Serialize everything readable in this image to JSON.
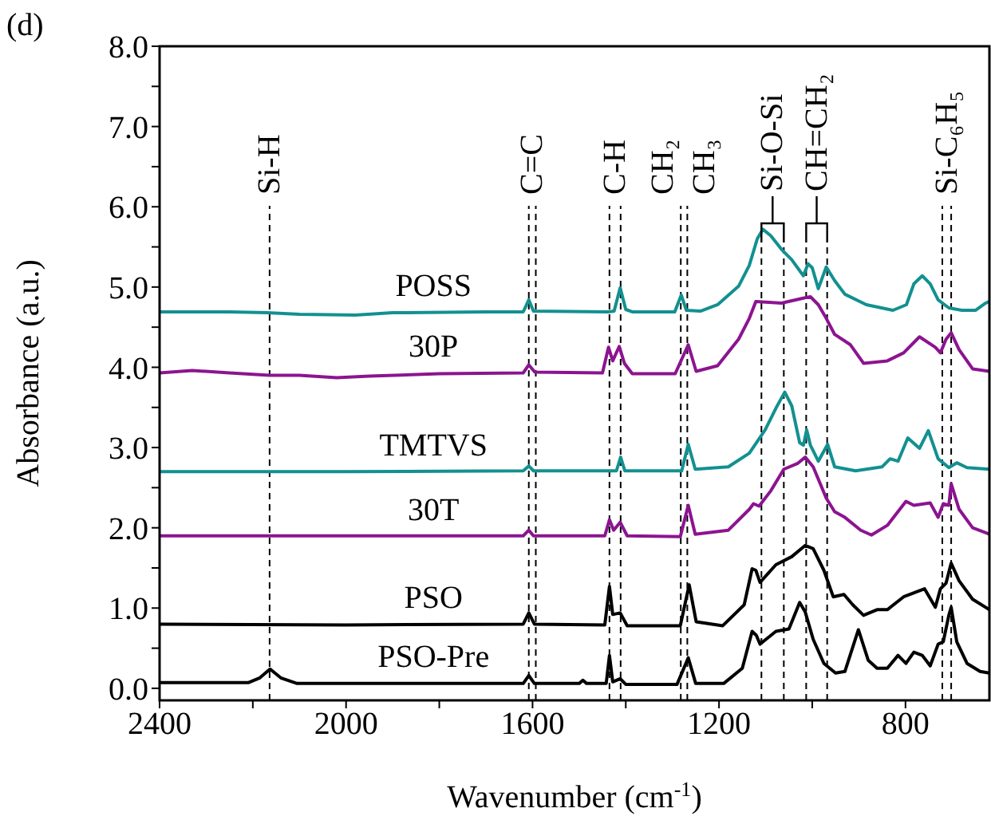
{
  "chart_data": {
    "type": "line",
    "xlabel": "Wavenumber (cm$^{-1}$)",
    "ylabel": "Absorbance (a.u.)",
    "xlim": [
      2400,
      620
    ],
    "xticks": [
      2400,
      {
        "value": 2200,
        "label": null
      },
      2000,
      {
        "value": 1800,
        "label": null
      },
      1600,
      {
        "value": 1400,
        "label": null
      },
      1200,
      {
        "value": 1000,
        "label": null
      },
      800
    ],
    "ylim": [
      -0.15,
      8
    ],
    "yticks": [
      {
        "value": 0,
        "label": "0.0"
      },
      {
        "value": 0.5,
        "label": null
      },
      {
        "value": 1,
        "label": "1.0"
      },
      {
        "value": 1.5,
        "label": null
      },
      {
        "value": 2,
        "label": "2.0"
      },
      {
        "value": 2.5,
        "label": null
      },
      {
        "value": 3,
        "label": "3.0"
      },
      {
        "value": 3.5,
        "label": null
      },
      {
        "value": 4,
        "label": "4.0"
      },
      {
        "value": 4.5,
        "label": null
      },
      {
        "value": 5,
        "label": "5.0"
      },
      {
        "value": 5.5,
        "label": null
      },
      {
        "value": 6,
        "label": "6.0"
      },
      {
        "value": 6.5,
        "label": null
      },
      {
        "value": 7,
        "label": "7.0"
      },
      {
        "value": 7.5,
        "label": null
      },
      {
        "value": 8,
        "label": "8.0"
      }
    ],
    "series": [
      {
        "name": "POSS",
        "color": "#139090",
        "x": [
          2400,
          2250,
          2170,
          2100,
          1980,
          1900,
          1700,
          1620,
          1608,
          1598,
          1440,
          1425,
          1412,
          1400,
          1385,
          1295,
          1281,
          1270,
          1240,
          1203,
          1158,
          1135,
          1118,
          1106,
          1089,
          1066,
          1044,
          1019,
          1009,
          1000,
          987,
          970,
          952,
          930,
          884,
          827,
          798,
          782,
          764,
          747,
          730,
          707,
          679,
          650,
          628,
          620
        ],
        "values": [
          4.69,
          4.69,
          4.68,
          4.66,
          4.65,
          4.68,
          4.69,
          4.69,
          4.84,
          4.7,
          4.69,
          4.7,
          4.99,
          4.72,
          4.69,
          4.69,
          4.9,
          4.71,
          4.7,
          4.78,
          5.01,
          5.27,
          5.6,
          5.72,
          5.64,
          5.47,
          5.34,
          5.14,
          5.29,
          5.24,
          4.98,
          5.25,
          5.08,
          4.91,
          4.78,
          4.71,
          4.78,
          5.04,
          5.14,
          5.04,
          4.84,
          4.74,
          4.71,
          4.71,
          4.8,
          4.82
        ]
      },
      {
        "name": "30P",
        "color": "#8c1490",
        "x": [
          2400,
          2330,
          2250,
          2164,
          2100,
          2020,
          1950,
          1800,
          1620,
          1608,
          1595,
          1450,
          1437,
          1428,
          1414,
          1403,
          1386,
          1294,
          1266,
          1249,
          1203,
          1158,
          1135,
          1121,
          1066,
          1021,
          1004,
          987,
          970,
          952,
          918,
          890,
          839,
          804,
          770,
          736,
          725,
          713,
          702,
          685,
          656,
          620
        ],
        "values": [
          3.93,
          3.96,
          3.93,
          3.9,
          3.9,
          3.87,
          3.89,
          3.92,
          3.93,
          4.03,
          3.94,
          3.93,
          4.25,
          4.08,
          4.26,
          4.05,
          3.92,
          3.92,
          4.28,
          3.95,
          4.02,
          4.35,
          4.61,
          4.82,
          4.8,
          4.86,
          4.88,
          4.78,
          4.61,
          4.41,
          4.28,
          4.05,
          4.08,
          4.18,
          4.38,
          4.25,
          4.18,
          4.35,
          4.43,
          4.22,
          3.98,
          3.95
        ]
      },
      {
        "name": "TMTVS",
        "color": "#139090",
        "x": [
          2400,
          2000,
          1620,
          1608,
          1598,
          1420,
          1411,
          1402,
          1280,
          1266,
          1251,
          1180,
          1135,
          1101,
          1078,
          1059,
          1044,
          1027,
          1019,
          1012,
          1004,
          987,
          967,
          952,
          907,
          850,
          833,
          816,
          795,
          770,
          751,
          730,
          707,
          690,
          668,
          620
        ],
        "values": [
          2.7,
          2.7,
          2.71,
          2.77,
          2.71,
          2.71,
          2.88,
          2.71,
          2.71,
          3.04,
          2.73,
          2.76,
          2.93,
          3.22,
          3.49,
          3.69,
          3.52,
          3.06,
          3.03,
          3.22,
          3.03,
          2.83,
          3.04,
          2.76,
          2.71,
          2.76,
          2.86,
          2.83,
          3.12,
          2.99,
          3.21,
          2.86,
          2.75,
          2.81,
          2.75,
          2.73
        ]
      },
      {
        "name": "30T",
        "color": "#8c1490",
        "x": [
          2400,
          2000,
          1620,
          1608,
          1598,
          1445,
          1435,
          1426,
          1412,
          1397,
          1283,
          1266,
          1251,
          1180,
          1135,
          1126,
          1114,
          1089,
          1061,
          1032,
          1015,
          998,
          970,
          952,
          930,
          896,
          873,
          839,
          799,
          782,
          747,
          730,
          719,
          707,
          702,
          685,
          656,
          620
        ],
        "values": [
          1.9,
          1.9,
          1.9,
          1.97,
          1.9,
          1.9,
          2.1,
          1.97,
          2.07,
          1.9,
          1.89,
          2.28,
          1.92,
          1.97,
          2.23,
          2.3,
          2.27,
          2.46,
          2.73,
          2.8,
          2.88,
          2.76,
          2.37,
          2.2,
          2.13,
          1.97,
          1.91,
          2.03,
          2.33,
          2.28,
          2.31,
          2.13,
          2.3,
          2.28,
          2.55,
          2.23,
          2.0,
          1.92
        ]
      },
      {
        "name": "PSO",
        "color": "#000000",
        "x": [
          2400,
          2000,
          1620,
          1608,
          1596,
          1445,
          1435,
          1428,
          1412,
          1397,
          1283,
          1264,
          1249,
          1192,
          1146,
          1129,
          1121,
          1112,
          1078,
          1044,
          1015,
          998,
          975,
          955,
          932,
          913,
          890,
          861,
          839,
          804,
          759,
          736,
          725,
          713,
          702,
          685,
          656,
          620
        ],
        "values": [
          0.8,
          0.79,
          0.8,
          0.94,
          0.8,
          0.79,
          1.27,
          0.92,
          0.94,
          0.78,
          0.78,
          1.29,
          0.83,
          0.78,
          1.04,
          1.49,
          1.47,
          1.32,
          1.54,
          1.64,
          1.78,
          1.74,
          1.47,
          1.14,
          1.17,
          1.04,
          0.91,
          0.98,
          0.98,
          1.14,
          1.24,
          1.01,
          1.24,
          1.31,
          1.56,
          1.34,
          1.11,
          0.98
        ]
      },
      {
        "name": "PSO-Pre",
        "color": "#000000",
        "x": [
          2400,
          2210,
          2185,
          2163,
          2140,
          2105,
          1620,
          1608,
          1596,
          1500,
          1492,
          1484,
          1442,
          1435,
          1428,
          1412,
          1400,
          1290,
          1266,
          1250,
          1190,
          1150,
          1129,
          1120,
          1112,
          1078,
          1050,
          1027,
          1015,
          998,
          975,
          950,
          930,
          901,
          880,
          861,
          839,
          816,
          799,
          782,
          764,
          747,
          730,
          719,
          707,
          702,
          690,
          668,
          640,
          620
        ],
        "values": [
          0.07,
          0.07,
          0.13,
          0.24,
          0.13,
          0.06,
          0.06,
          0.16,
          0.06,
          0.06,
          0.1,
          0.06,
          0.06,
          0.41,
          0.08,
          0.12,
          0.05,
          0.05,
          0.38,
          0.06,
          0.06,
          0.25,
          0.71,
          0.66,
          0.55,
          0.71,
          0.74,
          1.07,
          0.95,
          0.61,
          0.31,
          0.19,
          0.21,
          0.73,
          0.35,
          0.25,
          0.25,
          0.41,
          0.31,
          0.45,
          0.41,
          0.28,
          0.55,
          0.58,
          0.91,
          1.01,
          0.58,
          0.31,
          0.21,
          0.19
        ]
      }
    ],
    "ref_lines": [
      {
        "axis": "x",
        "value": 2164,
        "color": "#000000",
        "line_style": "dashed",
        "label": "Si-H"
      },
      {
        "axis": "x",
        "value": 1608,
        "color": "#000000",
        "line_style": "dashed",
        "label": "C=C"
      },
      {
        "axis": "x",
        "value": 1593,
        "color": "#000000",
        "line_style": "dashed"
      },
      {
        "axis": "x",
        "value": 1435,
        "color": "#000000",
        "line_style": "dashed",
        "label": "C-H"
      },
      {
        "axis": "x",
        "value": 1411,
        "color": "#000000",
        "line_style": "dashed"
      },
      {
        "axis": "x",
        "value": 1282,
        "color": "#000000",
        "line_style": "dashed",
        "label": "CH₂"
      },
      {
        "axis": "x",
        "value": 1268,
        "color": "#000000",
        "line_style": "dashed",
        "label": "CH₃"
      },
      {
        "axis": "x",
        "value": 1109,
        "color": "#000000",
        "line_style": "dashed",
        "label": "Si-O-Si"
      },
      {
        "axis": "x",
        "value": 1061,
        "color": "#000000",
        "line_style": "dashed"
      },
      {
        "axis": "x",
        "value": 1013,
        "color": "#000000",
        "line_style": "dashed",
        "label": "CH=CH₂"
      },
      {
        "axis": "x",
        "value": 968,
        "color": "#000000",
        "line_style": "dashed"
      },
      {
        "axis": "x",
        "value": 721,
        "color": "#000000",
        "line_style": "dashed",
        "label": "Si-C₆H₅"
      },
      {
        "axis": "x",
        "value": 702,
        "color": "#000000",
        "line_style": "dashed"
      }
    ],
    "annotations": [
      "(d)"
    ]
  }
}
